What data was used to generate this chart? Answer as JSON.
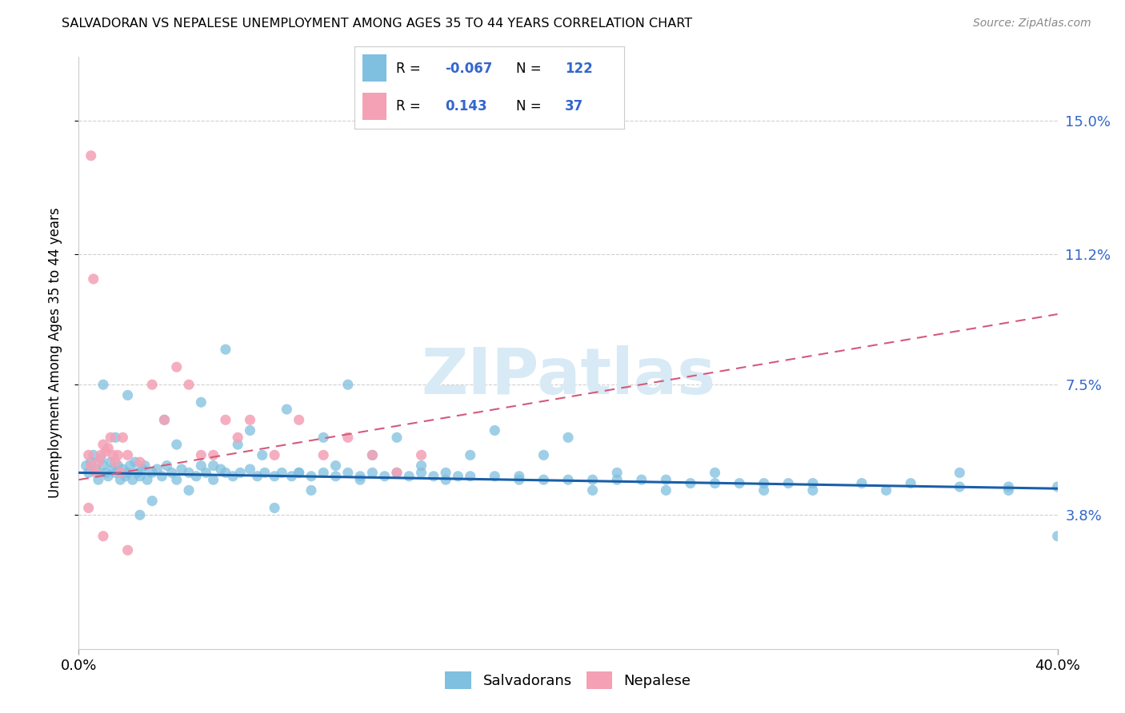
{
  "title": "SALVADORAN VS NEPALESE UNEMPLOYMENT AMONG AGES 35 TO 44 YEARS CORRELATION CHART",
  "source": "Source: ZipAtlas.com",
  "ylabel": "Unemployment Among Ages 35 to 44 years",
  "ytick_labels": [
    "15.0%",
    "11.2%",
    "7.5%",
    "3.8%"
  ],
  "ytick_values": [
    15.0,
    11.2,
    7.5,
    3.8
  ],
  "xmin": 0.0,
  "xmax": 40.0,
  "ymin": 0.0,
  "ymax": 16.8,
  "salvadoran_R": "-0.067",
  "salvadoran_N": "122",
  "nepalese_R": "0.143",
  "nepalese_N": "37",
  "legend_label_salv": "Salvadorans",
  "legend_label_nep": "Nepalese",
  "salv_color": "#7fbfdf",
  "nep_color": "#f4a0b5",
  "salv_line_color": "#1a5fa8",
  "nep_line_color": "#d45a7a",
  "background_color": "#ffffff",
  "watermark": "ZIPatlas",
  "blue_text_color": "#3366cc",
  "salv_x": [
    0.3,
    0.4,
    0.5,
    0.6,
    0.7,
    0.8,
    0.9,
    1.0,
    1.1,
    1.2,
    1.3,
    1.4,
    1.5,
    1.6,
    1.7,
    1.8,
    1.9,
    2.0,
    2.1,
    2.2,
    2.3,
    2.4,
    2.5,
    2.6,
    2.7,
    2.8,
    3.0,
    3.2,
    3.4,
    3.6,
    3.8,
    4.0,
    4.2,
    4.5,
    4.8,
    5.0,
    5.2,
    5.5,
    5.8,
    6.0,
    6.3,
    6.6,
    7.0,
    7.3,
    7.6,
    8.0,
    8.3,
    8.7,
    9.0,
    9.5,
    10.0,
    10.5,
    11.0,
    11.5,
    12.0,
    12.5,
    13.0,
    13.5,
    14.0,
    14.5,
    15.0,
    15.5,
    16.0,
    17.0,
    18.0,
    19.0,
    20.0,
    21.0,
    22.0,
    23.0,
    24.0,
    25.0,
    26.0,
    27.0,
    28.0,
    29.0,
    30.0,
    32.0,
    34.0,
    36.0,
    38.0,
    40.0,
    1.0,
    1.5,
    2.0,
    2.5,
    3.0,
    3.5,
    4.0,
    4.5,
    5.0,
    5.5,
    6.0,
    6.5,
    7.0,
    7.5,
    8.0,
    8.5,
    9.0,
    9.5,
    10.0,
    10.5,
    11.0,
    11.5,
    12.0,
    13.0,
    14.0,
    15.0,
    16.0,
    17.0,
    18.0,
    19.0,
    20.0,
    21.0,
    22.0,
    24.0,
    26.0,
    28.0,
    30.0,
    33.0,
    36.0,
    38.0,
    40.0
  ],
  "salv_y": [
    5.2,
    5.0,
    5.3,
    5.5,
    5.1,
    4.8,
    5.4,
    5.2,
    5.0,
    4.9,
    5.3,
    5.1,
    5.0,
    5.2,
    4.8,
    5.1,
    4.9,
    5.0,
    5.2,
    4.8,
    5.3,
    5.0,
    4.9,
    5.1,
    5.2,
    4.8,
    5.0,
    5.1,
    4.9,
    5.2,
    5.0,
    4.8,
    5.1,
    5.0,
    4.9,
    5.2,
    5.0,
    4.8,
    5.1,
    5.0,
    4.9,
    5.0,
    5.1,
    4.9,
    5.0,
    4.9,
    5.0,
    4.9,
    5.0,
    4.9,
    5.0,
    4.9,
    5.0,
    4.9,
    5.0,
    4.9,
    5.0,
    4.9,
    5.0,
    4.9,
    5.0,
    4.9,
    4.9,
    4.9,
    4.9,
    4.8,
    4.8,
    4.8,
    4.8,
    4.8,
    4.8,
    4.7,
    4.7,
    4.7,
    4.7,
    4.7,
    4.7,
    4.7,
    4.7,
    4.6,
    4.6,
    4.6,
    7.5,
    6.0,
    7.2,
    3.8,
    4.2,
    6.5,
    5.8,
    4.5,
    7.0,
    5.2,
    8.5,
    5.8,
    6.2,
    5.5,
    4.0,
    6.8,
    5.0,
    4.5,
    6.0,
    5.2,
    7.5,
    4.8,
    5.5,
    6.0,
    5.2,
    4.8,
    5.5,
    6.2,
    4.8,
    5.5,
    6.0,
    4.5,
    5.0,
    4.5,
    5.0,
    4.5,
    4.5,
    4.5,
    5.0,
    4.5,
    3.2
  ],
  "nep_x": [
    0.4,
    0.5,
    0.5,
    0.6,
    0.7,
    0.8,
    0.9,
    1.0,
    1.1,
    1.2,
    1.3,
    1.4,
    1.5,
    1.6,
    1.7,
    1.8,
    2.0,
    2.5,
    3.0,
    3.5,
    4.0,
    4.5,
    5.0,
    5.5,
    6.0,
    6.5,
    7.0,
    8.0,
    9.0,
    10.0,
    11.0,
    12.0,
    13.0,
    14.0,
    0.4,
    1.0,
    2.0
  ],
  "nep_y": [
    5.5,
    14.0,
    5.2,
    10.5,
    5.0,
    5.3,
    5.5,
    5.8,
    5.6,
    5.7,
    6.0,
    5.5,
    5.3,
    5.5,
    5.0,
    6.0,
    5.5,
    5.3,
    7.5,
    6.5,
    8.0,
    7.5,
    5.5,
    5.5,
    6.5,
    6.0,
    6.5,
    5.5,
    6.5,
    5.5,
    6.0,
    5.5,
    5.0,
    5.5,
    4.0,
    3.2,
    2.8
  ]
}
